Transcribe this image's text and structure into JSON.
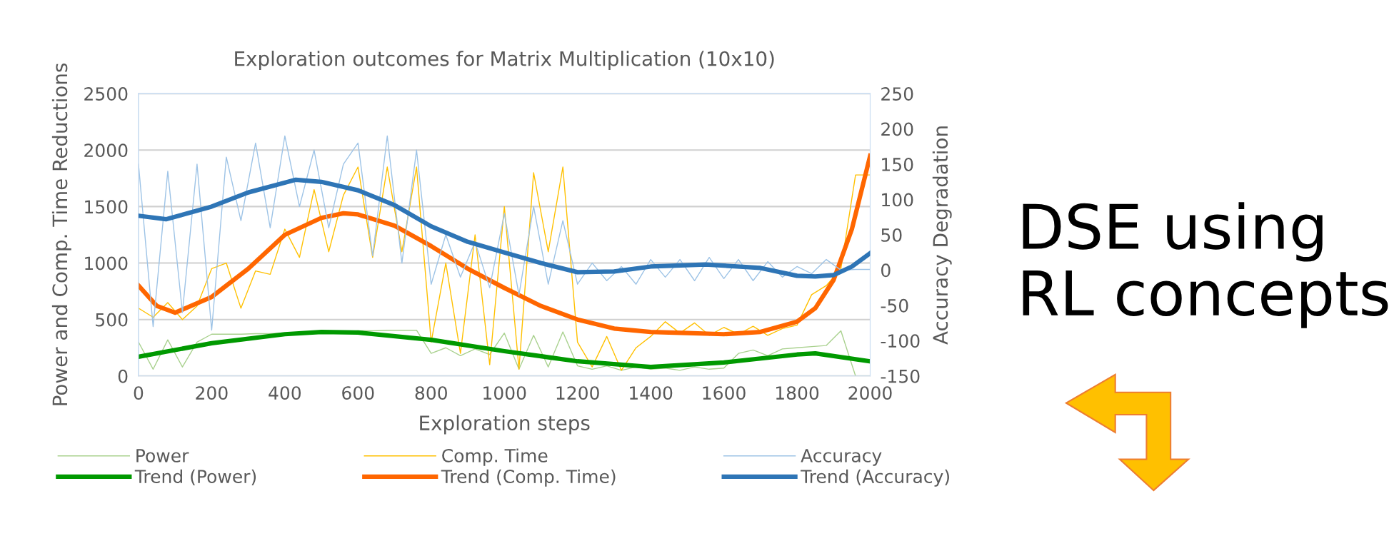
{
  "chart_data": {
    "type": "line",
    "title": "Exploration outcomes for Matrix Multiplication (10x10)",
    "xlabel": "Exploration steps",
    "ylabel": "Power and Comp. Time Reductions",
    "y2label": "Accuracy Degradation",
    "x": [
      0,
      40,
      80,
      120,
      160,
      200,
      240,
      280,
      320,
      360,
      400,
      440,
      480,
      520,
      560,
      600,
      640,
      680,
      720,
      760,
      800,
      840,
      880,
      920,
      960,
      1000,
      1040,
      1080,
      1120,
      1160,
      1200,
      1240,
      1280,
      1320,
      1360,
      1400,
      1440,
      1480,
      1520,
      1560,
      1600,
      1640,
      1680,
      1720,
      1760,
      1800,
      1840,
      1880,
      1920,
      1960,
      2000
    ],
    "series": [
      {
        "name": "Power",
        "color": "#a9d18e",
        "values": [
          300,
          60,
          320,
          80,
          300,
          370,
          370,
          370,
          375,
          375,
          380,
          380,
          380,
          385,
          390,
          400,
          400,
          405,
          405,
          405,
          200,
          250,
          180,
          240,
          190,
          380,
          60,
          360,
          80,
          390,
          90,
          60,
          90,
          50,
          80,
          60,
          70,
          50,
          80,
          60,
          70,
          200,
          230,
          180,
          240,
          250,
          260,
          270,
          400,
          0,
          0
        ]
      },
      {
        "name": "Comp. Time",
        "color": "#ffc000",
        "values": [
          600,
          520,
          650,
          500,
          620,
          950,
          1000,
          600,
          930,
          900,
          1300,
          1050,
          1650,
          1100,
          1600,
          1850,
          1050,
          1850,
          1100,
          1850,
          300,
          1000,
          200,
          1250,
          100,
          1500,
          60,
          1800,
          1100,
          1850,
          300,
          80,
          350,
          50,
          250,
          350,
          480,
          380,
          470,
          360,
          430,
          370,
          440,
          360,
          420,
          450,
          720,
          800,
          950,
          1780,
          1780
        ]
      },
      {
        "name": "Accuracy",
        "color": "#9dc3e6",
        "axis": "y2",
        "values": [
          150,
          -80,
          140,
          -60,
          150,
          -85,
          160,
          70,
          180,
          60,
          190,
          90,
          170,
          60,
          150,
          180,
          20,
          190,
          10,
          170,
          -20,
          50,
          -10,
          40,
          -25,
          80,
          -35,
          90,
          -20,
          70,
          -20,
          10,
          -15,
          5,
          -20,
          15,
          -10,
          15,
          -15,
          18,
          -12,
          15,
          -15,
          12,
          -10,
          5,
          -5,
          15,
          0,
          1,
          1
        ]
      },
      {
        "name": "Trend (Power)",
        "color": "#009900",
        "x": [
          0,
          200,
          400,
          500,
          600,
          800,
          1000,
          1200,
          1400,
          1600,
          1800,
          1850,
          2000
        ],
        "values": [
          170,
          290,
          370,
          390,
          385,
          320,
          220,
          130,
          80,
          120,
          190,
          200,
          130
        ]
      },
      {
        "name": "Trend (Comp. Time)",
        "color": "#ff6600",
        "x": [
          0,
          50,
          100,
          200,
          300,
          400,
          500,
          560,
          600,
          700,
          800,
          900,
          1000,
          1100,
          1200,
          1300,
          1400,
          1500,
          1600,
          1700,
          1800,
          1850,
          1900,
          1950,
          2000
        ],
        "values": [
          800,
          620,
          560,
          700,
          950,
          1250,
          1400,
          1440,
          1430,
          1330,
          1150,
          950,
          780,
          620,
          500,
          420,
          390,
          380,
          370,
          390,
          480,
          600,
          850,
          1300,
          1950
        ]
      },
      {
        "name": "Trend (Accuracy)",
        "color": "#2e75b6",
        "axis": "y2",
        "x": [
          0,
          75,
          200,
          300,
          430,
          500,
          600,
          700,
          800,
          900,
          1000,
          1100,
          1200,
          1300,
          1400,
          1550,
          1700,
          1800,
          1850,
          1900,
          1950,
          2000
        ],
        "values": [
          77,
          72,
          90,
          110,
          128,
          125,
          113,
          92,
          62,
          40,
          25,
          10,
          -3,
          -2,
          5,
          8,
          3,
          -8,
          -9,
          -7,
          5,
          24
        ]
      }
    ],
    "xlim": [
      0,
      2000
    ],
    "xticks": [
      0,
      200,
      400,
      600,
      800,
      1000,
      1200,
      1400,
      1600,
      1800,
      2000
    ],
    "ylim": [
      0,
      2500
    ],
    "yticks": [
      0,
      500,
      1000,
      1500,
      2000,
      2500
    ],
    "y2lim": [
      -150,
      250
    ],
    "y2ticks": [
      -150,
      -100,
      -50,
      0,
      50,
      100,
      150,
      200,
      250
    ],
    "grid": "y",
    "legend": "bottom",
    "annotations": [
      "DSE using RL concepts"
    ]
  }
}
